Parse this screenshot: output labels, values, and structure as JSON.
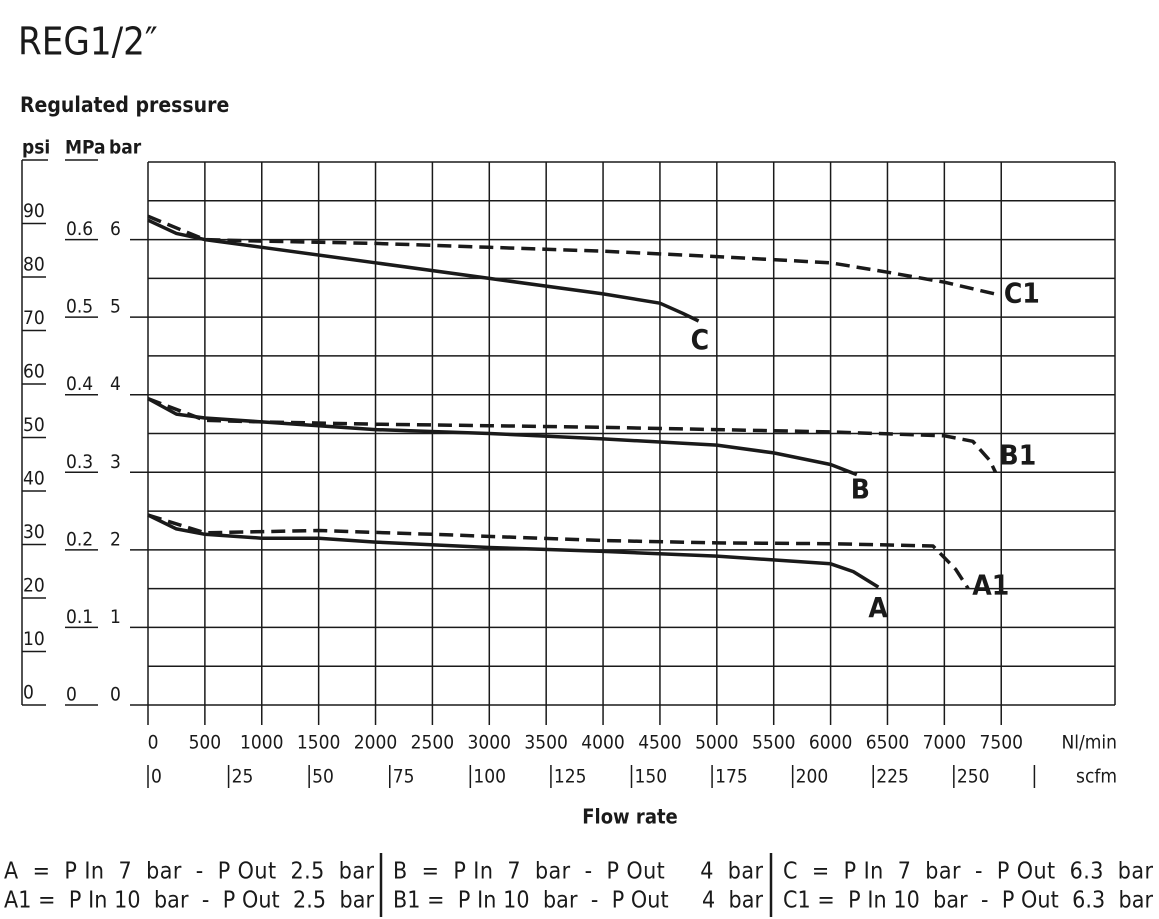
{
  "chart_data": {
    "type": "line",
    "title": "REG1/2″",
    "y_label": "Regulated pressure",
    "y_units": [
      "psi",
      "MPa",
      "bar"
    ],
    "x_label": "Flow rate",
    "x_unit": "Nl/min",
    "x2_unit": "scfm",
    "xlim": [
      0,
      8500
    ],
    "xticks": [
      0,
      500,
      1000,
      1500,
      2000,
      2500,
      3000,
      3500,
      4000,
      4500,
      5000,
      5500,
      6000,
      6500,
      7000,
      7500
    ],
    "x2lim": [
      0,
      300
    ],
    "x2ticks": [
      0,
      25,
      50,
      75,
      100,
      125,
      150,
      175,
      200,
      225,
      250,
      275
    ],
    "x2ticklabels": [
      "0",
      "25",
      "50",
      "75",
      "100",
      "125",
      "150",
      "175",
      "200",
      "225",
      "250",
      null
    ],
    "ylim": [
      0,
      7
    ],
    "yticks": [
      0,
      1,
      2,
      3,
      4,
      5,
      6
    ],
    "ygrid": [
      0,
      0.5,
      1,
      1.5,
      2,
      2.5,
      3,
      3.5,
      4,
      4.5,
      5,
      5.5,
      6,
      6.5,
      7
    ],
    "psi_lim": [
      0,
      101.5
    ],
    "psi_ticks": [
      0,
      10,
      20,
      30,
      40,
      50,
      60,
      70,
      80,
      90
    ],
    "mpa_lim": [
      0,
      0.7
    ],
    "mpa_ticks": [
      0,
      0.1,
      0.2,
      0.3,
      0.4,
      0.5,
      0.6
    ],
    "grid": true,
    "series": [
      {
        "name": "A",
        "color": "#1a1a1a",
        "dashed": false,
        "x": [
          0,
          250,
          500,
          1000,
          1500,
          2000,
          3000,
          4000,
          5000,
          6000,
          6200,
          6420
        ],
        "values": [
          2.45,
          2.27,
          2.2,
          2.15,
          2.15,
          2.1,
          2.03,
          1.98,
          1.92,
          1.82,
          1.72,
          1.52
        ]
      },
      {
        "name": "A1",
        "color": "#1a1a1a",
        "dashed": true,
        "x": [
          0,
          500,
          1500,
          2500,
          4000,
          5000,
          6000,
          6900,
          7100,
          7210
        ],
        "values": [
          2.45,
          2.22,
          2.25,
          2.2,
          2.12,
          2.09,
          2.08,
          2.05,
          1.75,
          1.5
        ]
      },
      {
        "name": "B",
        "color": "#1a1a1a",
        "dashed": false,
        "x": [
          0,
          250,
          500,
          1000,
          2000,
          3000,
          4000,
          5000,
          5500,
          6000,
          6230
        ],
        "values": [
          3.95,
          3.75,
          3.7,
          3.65,
          3.55,
          3.5,
          3.43,
          3.35,
          3.25,
          3.1,
          2.97
        ]
      },
      {
        "name": "B1",
        "color": "#1a1a1a",
        "dashed": true,
        "x": [
          0,
          500,
          1000,
          2000,
          3000,
          4000,
          5000,
          6000,
          7000,
          7250,
          7400,
          7450
        ],
        "values": [
          3.95,
          3.67,
          3.65,
          3.62,
          3.6,
          3.58,
          3.55,
          3.52,
          3.47,
          3.4,
          3.15,
          3.0
        ]
      },
      {
        "name": "C",
        "color": "#1a1a1a",
        "dashed": false,
        "x": [
          0,
          250,
          500,
          1000,
          2000,
          3000,
          4000,
          4500,
          4700,
          4840
        ],
        "values": [
          6.25,
          6.08,
          6.0,
          5.9,
          5.7,
          5.5,
          5.3,
          5.18,
          5.05,
          4.95
        ]
      },
      {
        "name": "C1",
        "color": "#1a1a1a",
        "dashed": true,
        "x": [
          0,
          500,
          1000,
          2000,
          3000,
          4000,
          5000,
          6000,
          6500,
          7000,
          7470
        ],
        "values": [
          6.3,
          6.0,
          5.98,
          5.95,
          5.9,
          5.85,
          5.78,
          5.7,
          5.58,
          5.45,
          5.29
        ]
      }
    ],
    "notes": [
      [
        "A  =  P In  7  bar  -  P Out  2.5  bar",
        "A1 =  P In 10  bar  -  P Out  2.5  bar"
      ],
      [
        "B  =  P In  7  bar  -  P Out     4  bar",
        "B1 =  P In 10  bar  -  P Out     4  bar"
      ],
      [
        "C  =  P In  7  bar  -  P Out  6.3  bar",
        "C1 =  P In 10  bar  -  P Out  6.3  bar"
      ]
    ]
  }
}
